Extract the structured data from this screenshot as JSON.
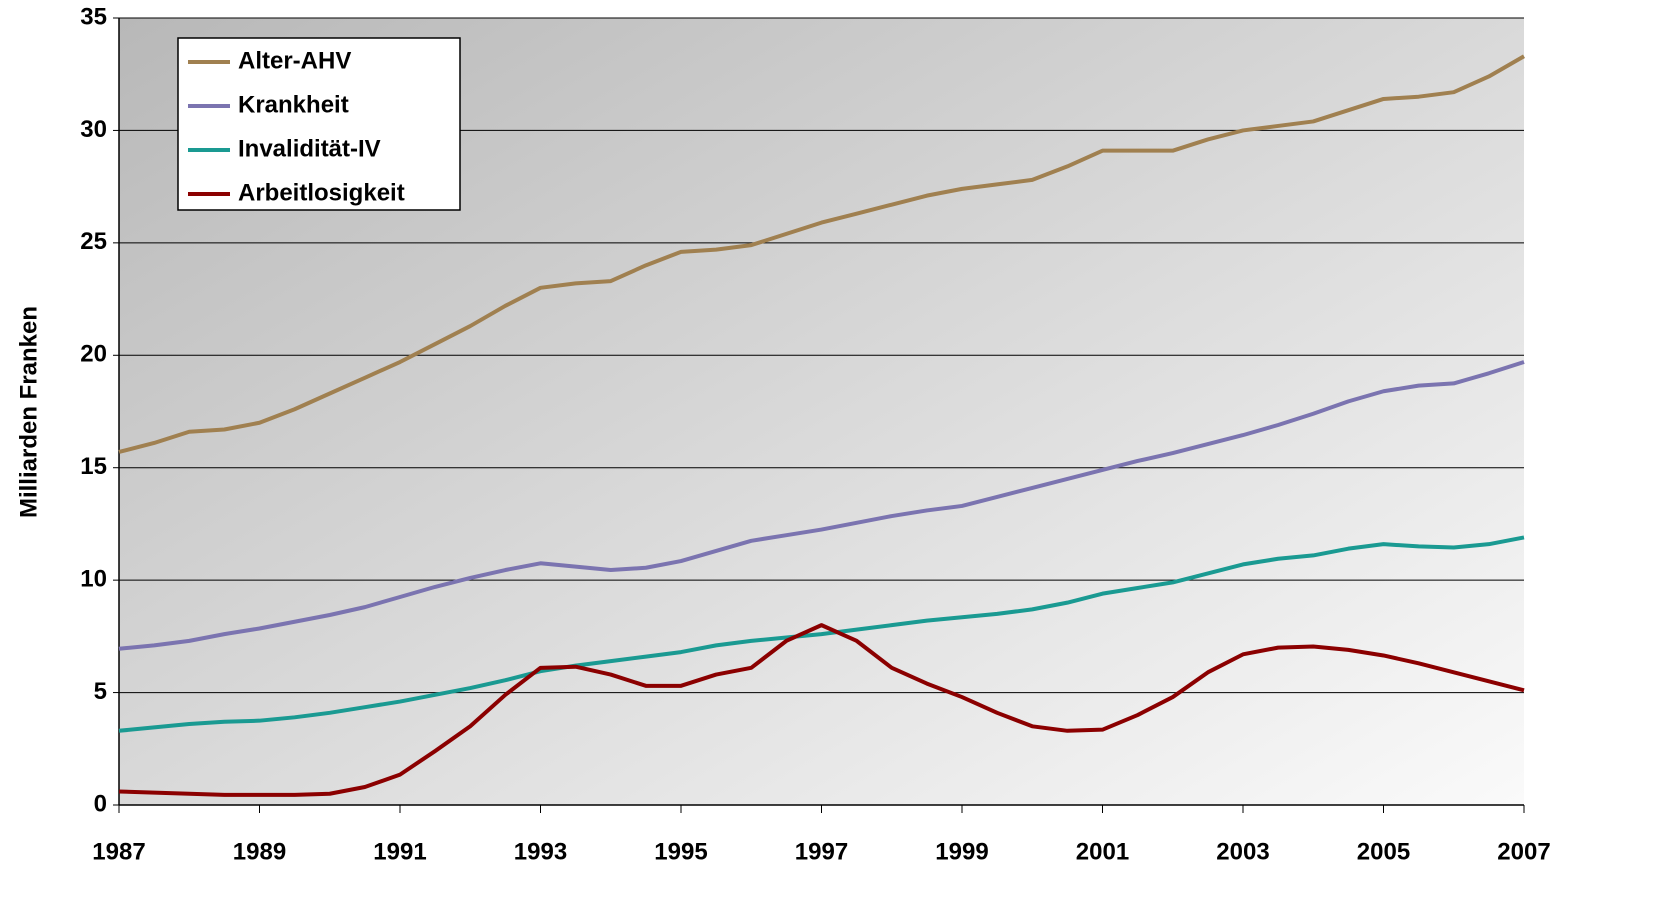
{
  "chart_data": {
    "type": "line",
    "ylabel": "Milliarden Franken",
    "x": [
      1987,
      1987.5,
      1988,
      1988.5,
      1989,
      1989.5,
      1990,
      1990.5,
      1991,
      1991.5,
      1992,
      1992.5,
      1993,
      1993.5,
      1994,
      1994.5,
      1995,
      1995.5,
      1996,
      1996.5,
      1997,
      1997.5,
      1998,
      1998.5,
      1999,
      1999.5,
      2000,
      2000.5,
      2001,
      2001.5,
      2002,
      2002.5,
      2003,
      2003.5,
      2004,
      2004.5,
      2005,
      2005.5,
      2006,
      2006.5,
      2007
    ],
    "series": [
      {
        "name": "Alter-AHV",
        "color": "#a08050",
        "values": [
          15.7,
          16.1,
          16.6,
          16.7,
          17.0,
          17.6,
          18.3,
          19.0,
          19.7,
          20.5,
          21.3,
          22.2,
          23.0,
          23.2,
          23.3,
          24.0,
          24.6,
          24.7,
          24.9,
          25.4,
          25.9,
          26.3,
          26.7,
          27.1,
          27.4,
          27.6,
          27.8,
          28.4,
          29.1,
          29.1,
          29.1,
          29.6,
          30.0,
          30.2,
          30.4,
          30.9,
          31.4,
          31.5,
          31.7,
          32.4,
          33.3
        ]
      },
      {
        "name": "Krankheit",
        "color": "#7b74b0",
        "values": [
          6.95,
          7.1,
          7.3,
          7.6,
          7.85,
          8.15,
          8.45,
          8.8,
          9.25,
          9.7,
          10.1,
          10.45,
          10.75,
          10.6,
          10.45,
          10.55,
          10.85,
          11.3,
          11.75,
          12.0,
          12.25,
          12.55,
          12.85,
          13.1,
          13.3,
          13.7,
          14.1,
          14.5,
          14.9,
          15.3,
          15.65,
          16.05,
          16.45,
          16.9,
          17.4,
          17.95,
          18.4,
          18.65,
          18.75,
          19.2,
          19.7
        ]
      },
      {
        "name": "Invalidität-IV",
        "color": "#1a9a92",
        "values": [
          3.3,
          3.45,
          3.6,
          3.7,
          3.75,
          3.9,
          4.1,
          4.35,
          4.6,
          4.9,
          5.2,
          5.55,
          5.95,
          6.2,
          6.4,
          6.6,
          6.8,
          7.1,
          7.3,
          7.45,
          7.6,
          7.8,
          8.0,
          8.2,
          8.35,
          8.5,
          8.7,
          9.0,
          9.4,
          9.65,
          9.9,
          10.3,
          10.7,
          10.95,
          11.1,
          11.4,
          11.6,
          11.5,
          11.45,
          11.6,
          11.9
        ]
      },
      {
        "name": "Arbeitlosigkeit",
        "color": "#8b0000",
        "values": [
          0.6,
          0.55,
          0.5,
          0.45,
          0.45,
          0.45,
          0.5,
          0.8,
          1.35,
          2.4,
          3.5,
          4.9,
          6.1,
          6.15,
          5.8,
          5.3,
          5.3,
          5.8,
          6.1,
          7.3,
          8.0,
          7.3,
          6.1,
          5.4,
          4.8,
          4.1,
          3.5,
          3.3,
          3.35,
          4.0,
          4.8,
          5.9,
          6.7,
          7.0,
          7.05,
          6.9,
          6.65,
          6.3,
          5.9,
          5.5,
          5.1
        ]
      }
    ],
    "xlim": [
      1987,
      2007
    ],
    "xticks": [
      1987,
      1989,
      1991,
      1993,
      1995,
      1997,
      1999,
      2001,
      2003,
      2005,
      2007
    ],
    "ylim": [
      0,
      35
    ],
    "yticks": [
      0,
      5,
      10,
      15,
      20,
      25,
      30,
      35
    ],
    "grid": true,
    "legend": "top-left"
  }
}
